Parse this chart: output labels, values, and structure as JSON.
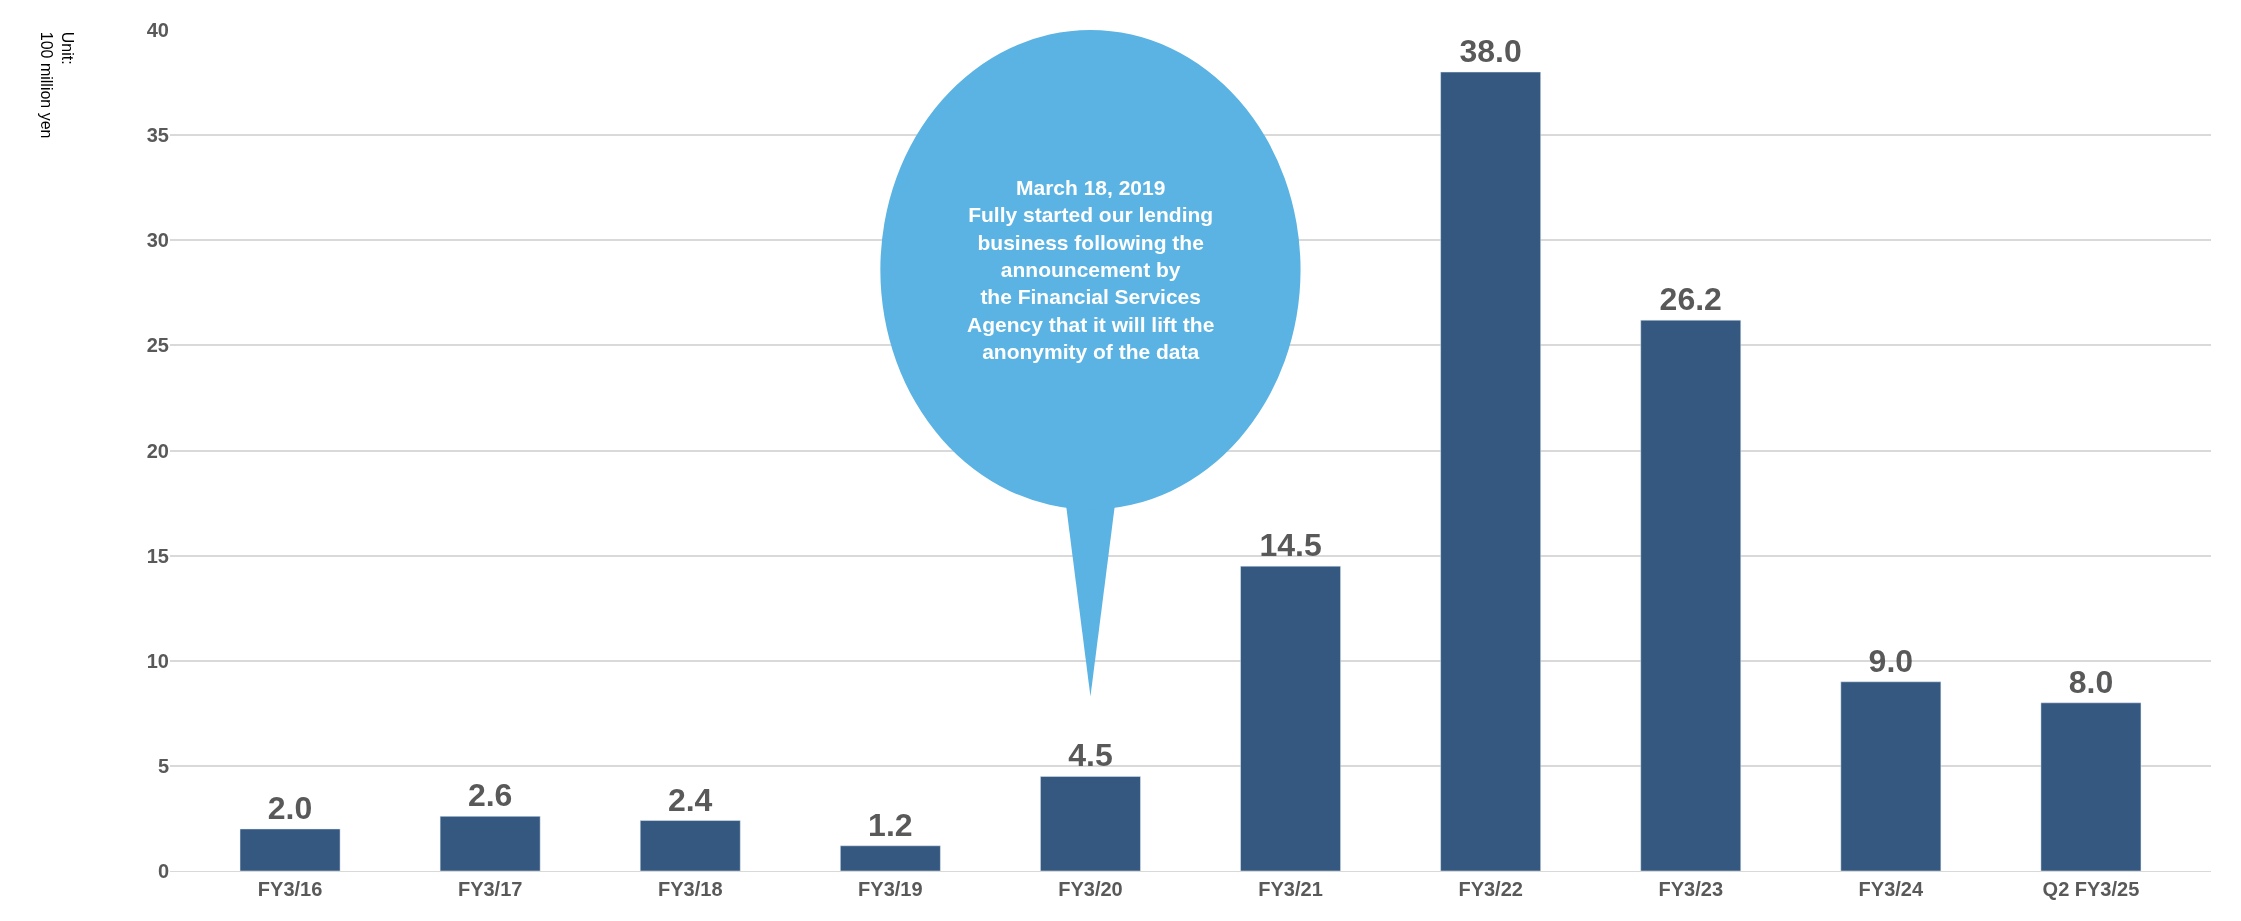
{
  "chart_data": {
    "type": "bar",
    "ylabel": "Unit:\n100 million yen",
    "categories": [
      "FY3/16",
      "FY3/17",
      "FY3/18",
      "FY3/19",
      "FY3/20",
      "FY3/21",
      "FY3/22",
      "FY3/23",
      "FY3/24",
      "Q2 FY3/25"
    ],
    "values": [
      2.0,
      2.6,
      2.4,
      1.2,
      4.5,
      14.5,
      38.0,
      26.2,
      9.0,
      8.0
    ],
    "color": "#34587f",
    "value_labels": [
      "2.0",
      "2.6",
      "2.4",
      "1.2",
      "4.5",
      "14.5",
      "38.0",
      "26.2",
      "9.0",
      "8.0"
    ],
    "ylim": [
      0,
      40
    ],
    "yticks": [
      0,
      5,
      10,
      15,
      20,
      25,
      30,
      35,
      40
    ],
    "grid": "y",
    "legend": false,
    "annotations": [
      "March 18, 2019\nFully started our lending\nbusiness following the\nannouncement by\nthe Financial Services\nAgency that it will lift the\nanonymity of the data"
    ]
  }
}
